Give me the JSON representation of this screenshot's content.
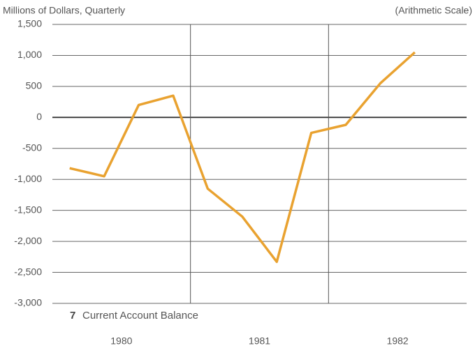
{
  "chart_data": {
    "type": "line",
    "subtitle": "Millions of Dollars, Quarterly",
    "scale_note": "(Arithmetic Scale)",
    "figure_number": "7",
    "title": "Current Account Balance",
    "categories": [
      null,
      null,
      null,
      null,
      null,
      null,
      null,
      null,
      null,
      null,
      null,
      null
    ],
    "year_labels": [
      "1980",
      "1981",
      "1982"
    ],
    "series": [
      {
        "color": "#e9a230",
        "values": [
          -820,
          -950,
          200,
          350,
          -1150,
          -1600,
          -2330,
          -250,
          -120,
          550,
          1050,
          null
        ]
      }
    ],
    "ylim": [
      -3000,
      1500
    ],
    "yticks": [
      {
        "value": 1500,
        "label": "1,500"
      },
      {
        "value": 1000,
        "label": "1,000"
      },
      500,
      0,
      -500,
      {
        "value": -1000,
        "label": "-1,000"
      },
      {
        "value": -1500,
        "label": "-1,500"
      },
      {
        "value": -2000,
        "label": "-2,000"
      },
      {
        "value": -2500,
        "label": "-2,500"
      },
      {
        "value": -3000,
        "label": "-3,000"
      }
    ],
    "grid": true
  }
}
